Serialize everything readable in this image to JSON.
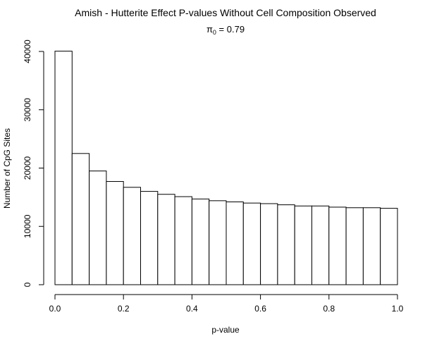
{
  "chart_data": {
    "type": "bar",
    "title": "Amish - Hutterite Effect P-values Without Cell Composition Observed",
    "subtitle": {
      "symbol": "π",
      "subscript": "0",
      "rest": " = 0.79"
    },
    "xlabel": "p-value",
    "ylabel": "Number of CpG Sites",
    "xlim": [
      0,
      1
    ],
    "ylim": [
      0,
      40000
    ],
    "x_ticks": [
      0.0,
      0.2,
      0.4,
      0.6,
      0.8,
      1.0
    ],
    "x_tick_labels": [
      "0.0",
      "0.2",
      "0.4",
      "0.6",
      "0.8",
      "1.0"
    ],
    "y_ticks": [
      0,
      10000,
      20000,
      30000,
      40000
    ],
    "y_tick_labels": [
      "0",
      "10000",
      "20000",
      "30000",
      "40000"
    ],
    "bin_edges": [
      0.0,
      0.05,
      0.1,
      0.15,
      0.2,
      0.25,
      0.3,
      0.35,
      0.4,
      0.45,
      0.5,
      0.55,
      0.6,
      0.65,
      0.7,
      0.75,
      0.8,
      0.85,
      0.9,
      0.95,
      1.0
    ],
    "values": [
      40050,
      22500,
      19500,
      17700,
      16700,
      16000,
      15500,
      15100,
      14700,
      14400,
      14200,
      14000,
      13900,
      13700,
      13500,
      13500,
      13300,
      13200,
      13200,
      13100
    ],
    "grid": false,
    "bar_fill": "#ffffff",
    "bar_stroke": "#000000"
  }
}
